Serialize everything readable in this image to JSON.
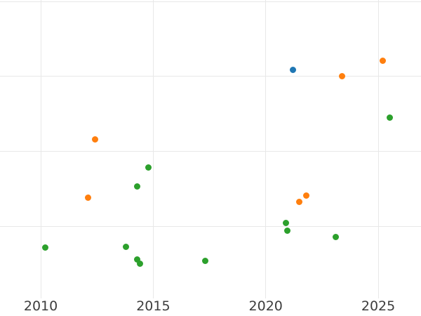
{
  "figure": {
    "background_color": "#ffffff",
    "grid_color": "#e8e8e8",
    "tick_label_color": "#3d3d3d"
  },
  "chart_data": {
    "type": "scatter",
    "title": "",
    "xlabel": "",
    "ylabel": "",
    "grid": true,
    "legend_position": "none",
    "x_ticks": [
      2010,
      2015,
      2020,
      2025
    ],
    "x_tick_labels": [
      "2010",
      "2015",
      "2020",
      "2025"
    ],
    "x_range": [
      2008.19,
      2026.9
    ],
    "y_axis_unlabeled": true,
    "y_gridlines": [
      1,
      2,
      3,
      4
    ],
    "y_range": [
      0.04,
      4.02
    ],
    "marker_diameter_px": 9,
    "series": [
      {
        "name": "blue",
        "color": "#1f77b4",
        "points": [
          {
            "x": 2021.2,
            "y": 3.09
          }
        ]
      },
      {
        "name": "orange",
        "color": "#ff7f0e",
        "points": [
          {
            "x": 2012.1,
            "y": 1.38
          },
          {
            "x": 2012.4,
            "y": 2.16
          },
          {
            "x": 2021.5,
            "y": 1.33
          },
          {
            "x": 2021.8,
            "y": 1.41
          },
          {
            "x": 2023.4,
            "y": 3.0
          },
          {
            "x": 2025.2,
            "y": 3.21
          }
        ]
      },
      {
        "name": "green",
        "color": "#2ca02c",
        "points": [
          {
            "x": 2010.2,
            "y": 0.72
          },
          {
            "x": 2013.8,
            "y": 0.73
          },
          {
            "x": 2014.3,
            "y": 1.53
          },
          {
            "x": 2014.3,
            "y": 0.56
          },
          {
            "x": 2014.4,
            "y": 0.5
          },
          {
            "x": 2014.8,
            "y": 1.79
          },
          {
            "x": 2017.3,
            "y": 0.54
          },
          {
            "x": 2020.9,
            "y": 1.05
          },
          {
            "x": 2020.95,
            "y": 0.94
          },
          {
            "x": 2023.1,
            "y": 0.86
          },
          {
            "x": 2025.5,
            "y": 2.45
          }
        ]
      }
    ]
  }
}
